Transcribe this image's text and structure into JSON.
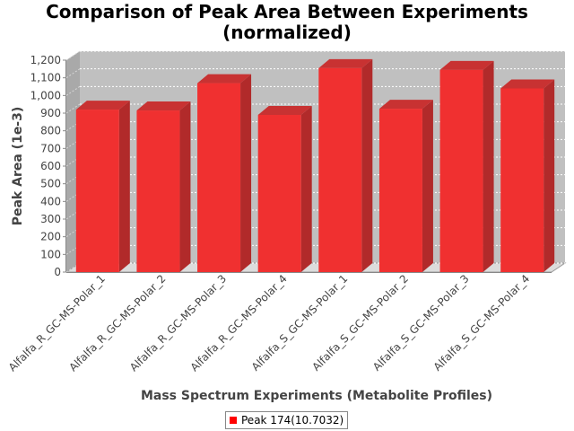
{
  "chart_data": {
    "type": "bar",
    "title": "Comparison of Peak Area Between Experiments (normalized)",
    "title_lines": [
      "Comparison of Peak Area Between Experiments",
      "(normalized)"
    ],
    "xlabel": "Mass Spectrum Experiments (Metabolite Profiles)",
    "ylabel": "Peak Area (1e-3)",
    "ylim": [
      0,
      1200
    ],
    "yticks": [
      0,
      100,
      200,
      300,
      400,
      500,
      600,
      700,
      800,
      900,
      1000,
      1100,
      1200
    ],
    "ytick_labels": [
      "0",
      "100",
      "200",
      "300",
      "400",
      "500",
      "600",
      "700",
      "800",
      "900",
      "1,000",
      "1,100",
      "1,200"
    ],
    "grid": true,
    "legend_position": "bottom",
    "categories": [
      "Alfalfa_R_GC-MS-Polar_1",
      "Alfalfa_R_GC-MS-Polar_2",
      "Alfalfa_R_GC-MS-Polar_3",
      "Alfalfa_R_GC-MS-Polar_4",
      "Alfalfa_S_GC-MS-Polar_1",
      "Alfalfa_S_GC-MS-Polar_2",
      "Alfalfa_S_GC-MS-Polar_3",
      "Alfalfa_S_GC-MS-Polar_4"
    ],
    "series": [
      {
        "name": "Peak 174(10.7032)",
        "color": "#ff0000",
        "values": [
          920,
          915,
          1070,
          890,
          1155,
          925,
          1145,
          1040
        ]
      }
    ]
  }
}
